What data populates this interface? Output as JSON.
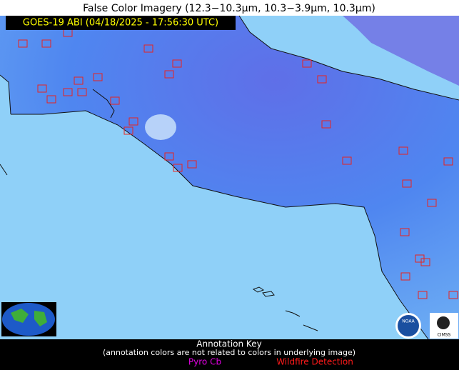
{
  "header": {
    "title": "False Color Imagery (12.3−10.3µm, 10.3−3.9µm, 10.3µm)",
    "timestamp": "GOES-19 ABI (04/18/2025 - 17:56:30 UTC)"
  },
  "logos": {
    "noaa": "NOAA",
    "cimss": "CIMSS"
  },
  "key": {
    "title": "Annotation Key",
    "note": "(annotation colors are not related to colors in underlying image)",
    "pyro": "Pyro Cb",
    "wildfire": "Wildfire Detection"
  }
}
